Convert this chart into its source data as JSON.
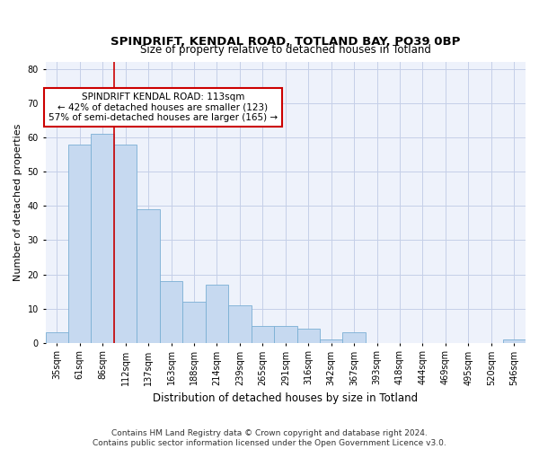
{
  "title": "SPINDRIFT, KENDAL ROAD, TOTLAND BAY, PO39 0BP",
  "subtitle": "Size of property relative to detached houses in Totland",
  "xlabel": "Distribution of detached houses by size in Totland",
  "ylabel": "Number of detached properties",
  "categories": [
    "35sqm",
    "61sqm",
    "86sqm",
    "112sqm",
    "137sqm",
    "163sqm",
    "188sqm",
    "214sqm",
    "239sqm",
    "265sqm",
    "291sqm",
    "316sqm",
    "342sqm",
    "367sqm",
    "393sqm",
    "418sqm",
    "444sqm",
    "469sqm",
    "495sqm",
    "520sqm",
    "546sqm"
  ],
  "values": [
    3,
    58,
    61,
    58,
    39,
    18,
    12,
    17,
    11,
    5,
    5,
    4,
    1,
    3,
    0,
    0,
    0,
    0,
    0,
    0,
    1
  ],
  "bar_color": "#c6d9f0",
  "bar_edge_color": "#7aafd4",
  "vline_x_index": 3,
  "annotation_line1": "SPINDRIFT KENDAL ROAD: 113sqm",
  "annotation_line2": "← 42% of detached houses are smaller (123)",
  "annotation_line3": "57% of semi-detached houses are larger (165) →",
  "annotation_box_color": "white",
  "annotation_box_edge": "#cc0000",
  "vline_color": "#cc0000",
  "ylim": [
    0,
    82
  ],
  "yticks": [
    0,
    10,
    20,
    30,
    40,
    50,
    60,
    70,
    80
  ],
  "footer_line1": "Contains HM Land Registry data © Crown copyright and database right 2024.",
  "footer_line2": "Contains public sector information licensed under the Open Government Licence v3.0.",
  "plot_bg_color": "#eef2fb",
  "grid_color": "#c5cfe8",
  "title_fontsize": 9.5,
  "subtitle_fontsize": 8.5,
  "ylabel_fontsize": 8,
  "xlabel_fontsize": 8.5,
  "tick_fontsize": 7,
  "annotation_fontsize": 7.5,
  "footer_fontsize": 6.5
}
